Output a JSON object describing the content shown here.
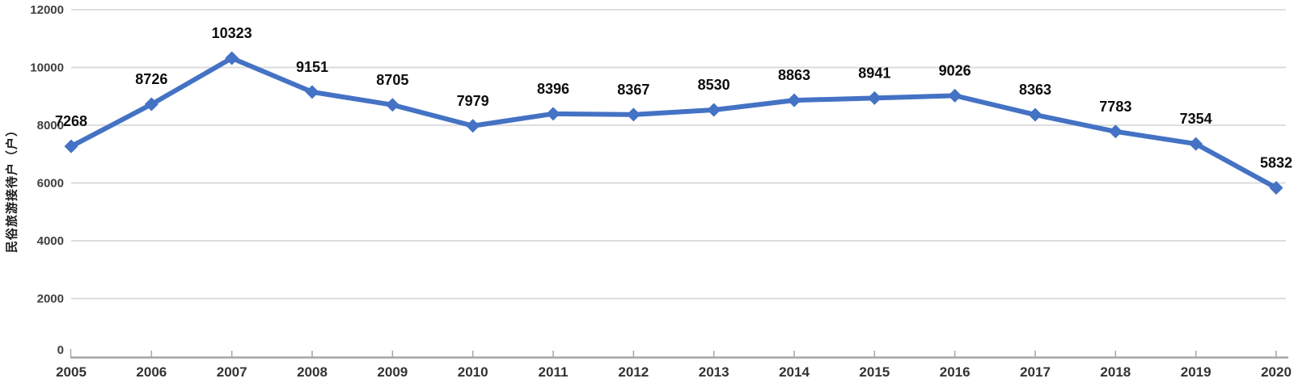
{
  "chart_data": {
    "type": "line",
    "title": "",
    "xlabel": "",
    "ylabel": "民俗旅游接待户（户）",
    "x": [
      "2005",
      "2006",
      "2007",
      "2008",
      "2009",
      "2010",
      "2011",
      "2012",
      "2013",
      "2014",
      "2015",
      "2016",
      "2017",
      "2018",
      "2019",
      "2020"
    ],
    "series": [
      {
        "name": "民俗旅游接待户",
        "values": [
          7268,
          8726,
          10323,
          9151,
          8705,
          7979,
          8396,
          8367,
          8530,
          8863,
          8941,
          9026,
          8363,
          7783,
          7354,
          5832
        ]
      }
    ],
    "ylim": [
      0,
      12000
    ],
    "yticks": [
      0,
      2000,
      4000,
      6000,
      8000,
      10000,
      12000
    ],
    "grid": true,
    "legend": false,
    "data_labels": true,
    "marker": "diamond",
    "colors": {
      "line": "#4472C4",
      "marker": "#4472C4",
      "gridline": "#D9D9D9",
      "axis": "#A6A6A6",
      "tick_label": "#404040",
      "data_label": "#0d0d0d"
    }
  }
}
